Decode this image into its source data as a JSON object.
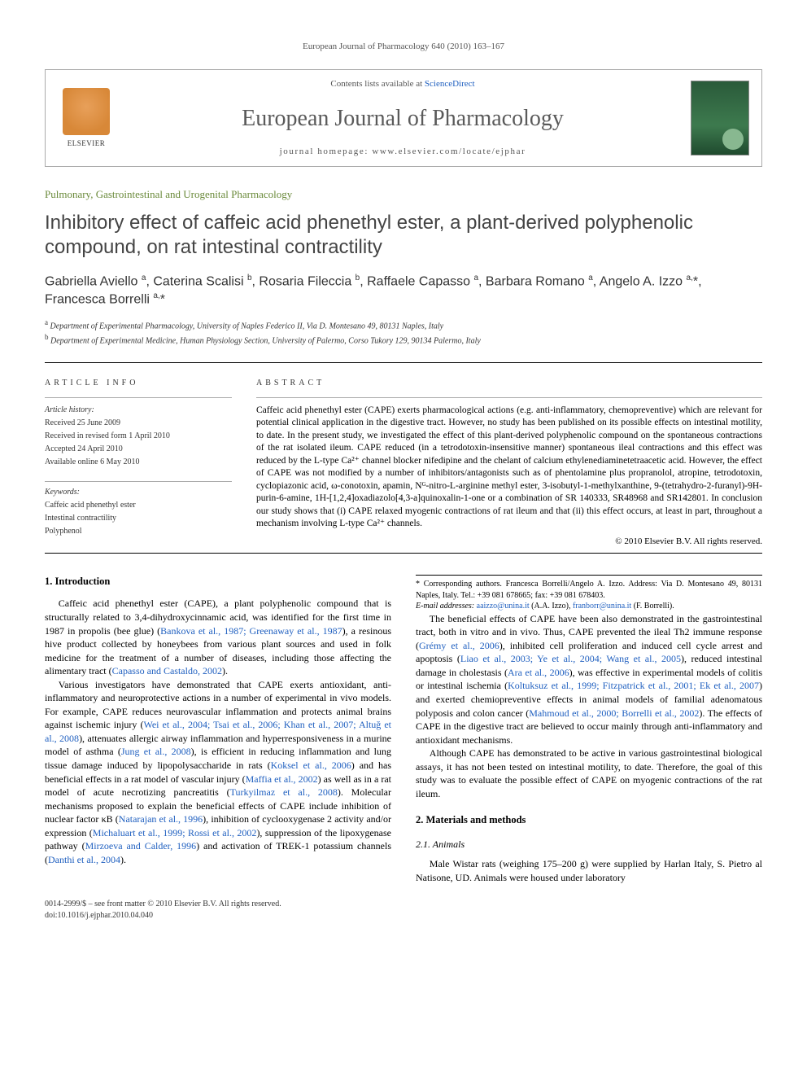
{
  "runningHead": "European Journal of Pharmacology 640 (2010) 163–167",
  "masthead": {
    "contentsPrefix": "Contents lists available at ",
    "contentsLink": "ScienceDirect",
    "journal": "European Journal of Pharmacology",
    "homepagePrefix": "journal homepage: ",
    "homepage": "www.elsevier.com/locate/ejphar",
    "elsevier": "ELSEVIER"
  },
  "sectionTag": "Pulmonary, Gastrointestinal and Urogenital Pharmacology",
  "title": "Inhibitory effect of caffeic acid phenethyl ester, a plant-derived polyphenolic compound, on rat intestinal contractility",
  "authorsHtml": "Gabriella Aviello <sup>a</sup>, Caterina Scalisi <sup>b</sup>, Rosaria Fileccia <sup>b</sup>, Raffaele Capasso <sup>a</sup>, Barbara Romano <sup>a</sup>, Angelo A. Izzo <sup>a,</sup><span class='star'>*</span>, Francesca Borrelli <sup>a,</sup><span class='star'>*</span>",
  "affiliations": {
    "a": "Department of Experimental Pharmacology, University of Naples Federico II, Via D. Montesano 49, 80131 Naples, Italy",
    "b": "Department of Experimental Medicine, Human Physiology Section, University of Palermo, Corso Tukory 129, 90134 Palermo, Italy"
  },
  "articleInfo": {
    "head": "ARTICLE INFO",
    "historyLabel": "Article history:",
    "received": "Received 25 June 2009",
    "revised": "Received in revised form 1 April 2010",
    "accepted": "Accepted 24 April 2010",
    "online": "Available online 6 May 2010",
    "keywordsLabel": "Keywords:",
    "kw1": "Caffeic acid phenethyl ester",
    "kw2": "Intestinal contractility",
    "kw3": "Polyphenol"
  },
  "abstract": {
    "head": "ABSTRACT",
    "text": "Caffeic acid phenethyl ester (CAPE) exerts pharmacological actions (e.g. anti-inflammatory, chemopreventive) which are relevant for potential clinical application in the digestive tract. However, no study has been published on its possible effects on intestinal motility, to date. In the present study, we investigated the effect of this plant-derived polyphenolic compound on the spontaneous contractions of the rat isolated ileum. CAPE reduced (in a tetrodotoxin-insensitive manner) spontaneous ileal contractions and this effect was reduced by the L-type Ca²⁺ channel blocker nifedipine and the chelant of calcium ethylenediaminetetraacetic acid. However, the effect of CAPE was not modified by a number of inhibitors/antagonists such as of phentolamine plus propranolol, atropine, tetrodotoxin, cyclopiazonic acid, ω-conotoxin, apamin, Nᴳ-nitro-L-arginine methyl ester, 3-isobutyl-1-methylxanthine, 9-(tetrahydro-2-furanyl)-9H-purin-6-amine, 1H-[1,2,4]oxadiazolo[4,3-a]quinoxalin-1-one or a combination of SR 140333, SR48968 and SR142801. In conclusion our study shows that (i) CAPE relaxed myogenic contractions of rat ileum and that (ii) this effect occurs, at least in part, throughout a mechanism involving L-type Ca²⁺ channels.",
    "copyright": "© 2010 Elsevier B.V. All rights reserved."
  },
  "body": {
    "introHead": "1. Introduction",
    "p1a": "Caffeic acid phenethyl ester (CAPE), a plant polyphenolic compound that is structurally related to 3,4-dihydroxycinnamic acid, was identified for the first time in 1987 in propolis (bee glue) (",
    "p1link1": "Bankova et al., 1987; Greenaway et al., 1987",
    "p1b": "), a resinous hive product collected by honeybees from various plant sources and used in folk medicine for the treatment of a number of diseases, including those affecting the alimentary tract (",
    "p1link2": "Capasso and Castaldo, 2002",
    "p1c": ").",
    "p2a": "Various investigators have demonstrated that CAPE exerts antioxidant, anti-inflammatory and neuroprotective actions in a number of experimental in vivo models. For example, CAPE reduces neurovascular inflammation and protects animal brains against ischemic injury (",
    "p2link1": "Wei et al., 2004; Tsai et al., 2006; Khan et al., 2007; Altuğ et al., 2008",
    "p2b": "), attenuates allergic airway inflammation and hyperresponsiveness in a murine model of asthma (",
    "p2link2": "Jung et al., 2008",
    "p2c": "), is efficient in reducing inflammation and lung tissue damage induced by lipopolysaccharide in rats (",
    "p2link3": "Koksel et al., 2006",
    "p2d": ") and has beneficial effects in a rat model of vascular injury (",
    "p2link4": "Maffia et al., 2002",
    "p2e": ") as well as in a rat model of acute necrotizing pancreatitis (",
    "p2link5": "Turkyilmaz et al., 2008",
    "p2f": "). Molecular mechanisms proposed to explain the beneficial effects of CAPE include inhibition of nuclear factor κB (",
    "p2link6": "Natarajan et al., 1996",
    "p2g": "), inhibition of cyclooxygenase ",
    "p2h": "2 activity and/or expression (",
    "p2link7": "Michaluart et al., 1999; Rossi et al., 2002",
    "p2i": "), suppression of the lipoxygenase pathway (",
    "p2link8": "Mirzoeva and Calder, 1996",
    "p2j": ") and activation of TREK-1 potassium channels (",
    "p2link9": "Danthi et al., 2004",
    "p2k": ").",
    "p3a": "The beneficial effects of CAPE have been also demonstrated in the gastrointestinal tract, both in vitro and in vivo. Thus, CAPE prevented the ileal Th2 immune response (",
    "p3link1": "Grémy et al., 2006",
    "p3b": "), inhibited cell proliferation and induced cell cycle arrest and apoptosis (",
    "p3link2": "Liao et al., 2003; Ye et al., 2004; Wang et al., 2005",
    "p3c": "), reduced intestinal damage in cholestasis (",
    "p3link3": "Ara et al., 2006",
    "p3d": "), was effective in experimental models of colitis or intestinal ischemia (",
    "p3link4": "Koltuksuz et al., 1999; Fitzpatrick et al., 2001; Ek et al., 2007",
    "p3e": ") and exerted chemiopreventive effects in animal models of familial adenomatous polyposis and colon cancer (",
    "p3link5": "Mahmoud et al., 2000; Borrelli et al., 2002",
    "p3f": "). The effects of CAPE in the digestive tract are believed to occur mainly through anti-inflammatory and antioxidant mechanisms.",
    "p4": "Although CAPE has demonstrated to be active in various gastrointestinal biological assays, it has not been tested on intestinal motility, to date. Therefore, the goal of this study was to evaluate the possible effect of CAPE on myogenic contractions of the rat ileum.",
    "mmHead": "2. Materials and methods",
    "animalsHead": "2.1. Animals",
    "p5": "Male Wistar rats (weighing 175–200 g) were supplied by Harlan Italy, S. Pietro al Natisone, UD. Animals were housed under laboratory"
  },
  "footnote": {
    "corr": "* Corresponding authors. Francesca Borrelli/Angelo A. Izzo. Address: Via D. Montesano 49, 80131 Naples, Italy. Tel.: +39 081 678665; fax: +39 081 678403.",
    "emailsLabel": "E-mail addresses: ",
    "email1": "aaizzo@unina.it",
    "email1who": " (A.A. Izzo), ",
    "email2": "franborr@unina.it",
    "email2who": " (F. Borrelli)."
  },
  "footer": {
    "line1": "0014-2999/$ – see front matter © 2010 Elsevier B.V. All rights reserved.",
    "line2": "doi:10.1016/j.ejphar.2010.04.040"
  }
}
